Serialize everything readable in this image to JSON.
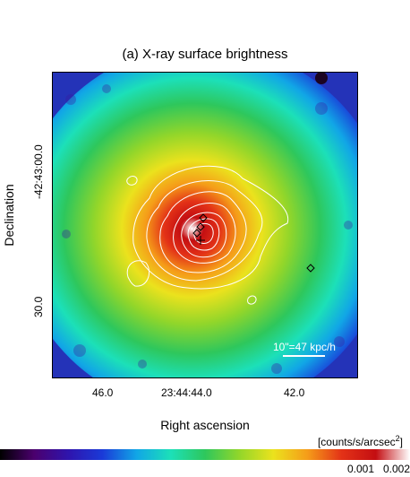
{
  "panel_title": "(a) X-ray surface brightness",
  "axes": {
    "ylabel": "Declination",
    "xlabel": "Right ascension",
    "dec_ticks": [
      "-42:43:00.0",
      "30.0"
    ],
    "ra_ticks": [
      "46.0",
      "23:44:44.0",
      "42.0"
    ]
  },
  "scale_bar": {
    "label": "10\"=47 kpc/h",
    "color": "#ffffff"
  },
  "colorbar": {
    "unit": "[counts/s/arcsec",
    "unit_sup": "2",
    "unit_close": "]",
    "ticks": [
      "0.001",
      "0.002"
    ],
    "stops": [
      "#000000",
      "#4b006e",
      "#2f14ad",
      "#1a3ad8",
      "#11a6e6",
      "#1ce0b8",
      "#2ec75c",
      "#92d62a",
      "#ebe21d",
      "#f59c19",
      "#e33217",
      "#c40e12",
      "#ffffff"
    ]
  },
  "colors": {
    "background_field": "#2a3cc4",
    "contour": "#ffffff",
    "markers": "#000000"
  },
  "markers": {
    "diamond_count": 4,
    "cross_count": 1
  }
}
